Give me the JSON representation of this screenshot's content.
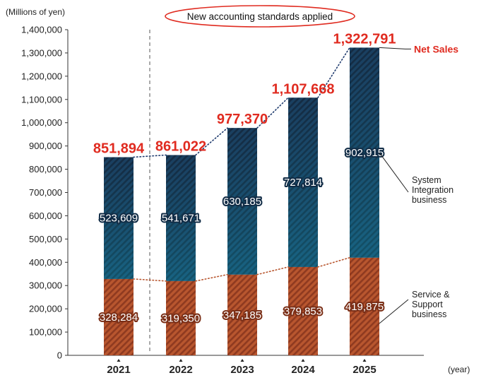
{
  "chart_data": {
    "type": "bar",
    "stacked": true,
    "y_unit_label": "(Millions of yen)",
    "x_unit_label": "(year)",
    "categories": [
      "2021",
      "2022",
      "2023",
      "2024",
      "2025"
    ],
    "series": [
      {
        "name": "Service & Support business",
        "legend_lines": [
          "Service &",
          "Support",
          "business"
        ],
        "values": [
          328284,
          319350,
          347185,
          379853,
          419875
        ],
        "labels": [
          "328,284",
          "319,350",
          "347,185",
          "379,853",
          "419,875"
        ],
        "color": "#a84a2a"
      },
      {
        "name": "System Integration business",
        "legend_lines": [
          "System",
          "Integration",
          "business"
        ],
        "values": [
          523609,
          541671,
          630185,
          727814,
          902915
        ],
        "labels": [
          "523,609",
          "541,671",
          "630,185",
          "727,814",
          "902,915"
        ],
        "color": "#1f4b6e"
      }
    ],
    "totals": {
      "name": "Net Sales",
      "values": [
        851894,
        861022,
        977370,
        1107668,
        1322791
      ],
      "labels": [
        "851,894",
        "861,022",
        "977,370",
        "1,107,668",
        "1,322,791"
      ],
      "color": "#e02b20"
    },
    "ylim": [
      0,
      1400000
    ],
    "yticks": [
      0,
      100000,
      200000,
      300000,
      400000,
      500000,
      600000,
      700000,
      800000,
      900000,
      1000000,
      1100000,
      1200000,
      1300000,
      1400000
    ],
    "ytick_labels": [
      "0",
      "100,000",
      "200,000",
      "300,000",
      "400,000",
      "500,000",
      "600,000",
      "700,000",
      "800,000",
      "900,000",
      "1,000,000",
      "1,100,000",
      "1,200,000",
      "1,300,000",
      "1,400,000"
    ],
    "annotation": "New accounting standards applied"
  }
}
